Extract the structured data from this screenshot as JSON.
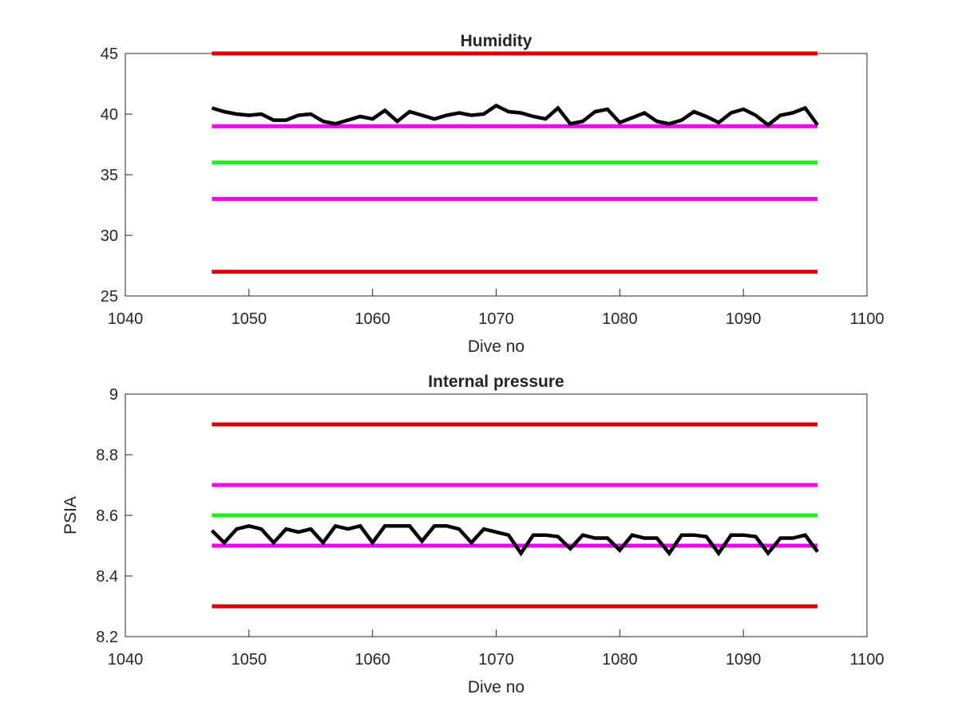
{
  "figure": {
    "background": "#ffffff"
  },
  "colors": {
    "red_limit": "#d40000",
    "magenta_limit": "#ee00ee",
    "green_target": "#22ee22",
    "measured": "#000000",
    "axes": "#262626"
  },
  "chart_data": [
    {
      "type": "line",
      "title": "Humidity",
      "xlabel": "Dive no",
      "ylabel": "",
      "xlim": [
        1040,
        1100
      ],
      "ylim": [
        25,
        45
      ],
      "xticks": [
        1040,
        1050,
        1060,
        1070,
        1080,
        1090,
        1100
      ],
      "yticks": [
        25,
        30,
        35,
        40,
        45
      ],
      "xtick_labels": [
        "1040",
        "1050",
        "1060",
        "1070",
        "1080",
        "1090",
        "1100"
      ],
      "ytick_labels": [
        "25",
        "30",
        "35",
        "40",
        "45"
      ],
      "grid": false,
      "legend": "none",
      "reference_lines": [
        {
          "color": "red",
          "y": 45,
          "x": [
            1047,
            1096
          ]
        },
        {
          "color": "magenta",
          "y": 39,
          "x": [
            1047,
            1096
          ]
        },
        {
          "color": "green",
          "y": 36,
          "x": [
            1047,
            1096
          ]
        },
        {
          "color": "magenta",
          "y": 33,
          "x": [
            1047,
            1096
          ]
        },
        {
          "color": "red",
          "y": 27,
          "x": [
            1047,
            1096
          ]
        }
      ],
      "series": [
        {
          "x": [
            1047,
            1048,
            1049,
            1050,
            1051,
            1052,
            1053,
            1054,
            1055,
            1056,
            1057,
            1058,
            1059,
            1060,
            1061,
            1062,
            1063,
            1064,
            1065,
            1066,
            1067,
            1068,
            1069,
            1070,
            1071,
            1072,
            1073,
            1074,
            1075,
            1076,
            1077,
            1078,
            1079,
            1080,
            1081,
            1082,
            1083,
            1084,
            1085,
            1086,
            1087,
            1088,
            1089,
            1090,
            1091,
            1092,
            1093,
            1094,
            1095,
            1096
          ],
          "y": [
            40.5,
            40.2,
            40.0,
            39.9,
            40.0,
            39.5,
            39.5,
            39.9,
            40.0,
            39.4,
            39.2,
            39.5,
            39.8,
            39.6,
            40.3,
            39.4,
            40.2,
            39.9,
            39.6,
            39.9,
            40.1,
            39.9,
            40.0,
            40.7,
            40.2,
            40.1,
            39.8,
            39.6,
            40.5,
            39.2,
            39.4,
            40.2,
            40.4,
            39.3,
            39.7,
            40.1,
            39.4,
            39.2,
            39.5,
            40.2,
            39.8,
            39.3,
            40.1,
            40.4,
            39.9,
            39.1,
            39.9,
            40.1,
            40.5,
            39.1
          ]
        }
      ]
    },
    {
      "type": "line",
      "title": "Internal pressure",
      "xlabel": "Dive no",
      "ylabel": "PSIA",
      "xlim": [
        1040,
        1100
      ],
      "ylim": [
        8.2,
        9
      ],
      "xticks": [
        1040,
        1050,
        1060,
        1070,
        1080,
        1090,
        1100
      ],
      "yticks": [
        8.2,
        8.4,
        8.6,
        8.8,
        9
      ],
      "xtick_labels": [
        "1040",
        "1050",
        "1060",
        "1070",
        "1080",
        "1090",
        "1100"
      ],
      "ytick_labels": [
        "8.2",
        "8.4",
        "8.6",
        "8.8",
        "9"
      ],
      "grid": false,
      "legend": "none",
      "reference_lines": [
        {
          "color": "red",
          "y": 8.9,
          "x": [
            1047,
            1096
          ]
        },
        {
          "color": "magenta",
          "y": 8.7,
          "x": [
            1047,
            1096
          ]
        },
        {
          "color": "green",
          "y": 8.6,
          "x": [
            1047,
            1096
          ]
        },
        {
          "color": "magenta",
          "y": 8.5,
          "x": [
            1047,
            1096
          ]
        },
        {
          "color": "red",
          "y": 8.3,
          "x": [
            1047,
            1096
          ]
        }
      ],
      "series": [
        {
          "x": [
            1047,
            1048,
            1049,
            1050,
            1051,
            1052,
            1053,
            1054,
            1055,
            1056,
            1057,
            1058,
            1059,
            1060,
            1061,
            1062,
            1063,
            1064,
            1065,
            1066,
            1067,
            1068,
            1069,
            1070,
            1071,
            1072,
            1073,
            1074,
            1075,
            1076,
            1077,
            1078,
            1079,
            1080,
            1081,
            1082,
            1083,
            1084,
            1085,
            1086,
            1087,
            1088,
            1089,
            1090,
            1091,
            1092,
            1093,
            1094,
            1095,
            1096
          ],
          "y": [
            8.55,
            8.51,
            8.555,
            8.565,
            8.555,
            8.51,
            8.555,
            8.545,
            8.555,
            8.51,
            8.565,
            8.555,
            8.565,
            8.51,
            8.565,
            8.565,
            8.565,
            8.515,
            8.565,
            8.565,
            8.555,
            8.51,
            8.555,
            8.545,
            8.535,
            8.475,
            8.535,
            8.535,
            8.53,
            8.49,
            8.535,
            8.525,
            8.525,
            8.485,
            8.535,
            8.525,
            8.525,
            8.475,
            8.535,
            8.535,
            8.53,
            8.475,
            8.535,
            8.535,
            8.53,
            8.475,
            8.525,
            8.525,
            8.535,
            8.48
          ]
        }
      ]
    }
  ]
}
